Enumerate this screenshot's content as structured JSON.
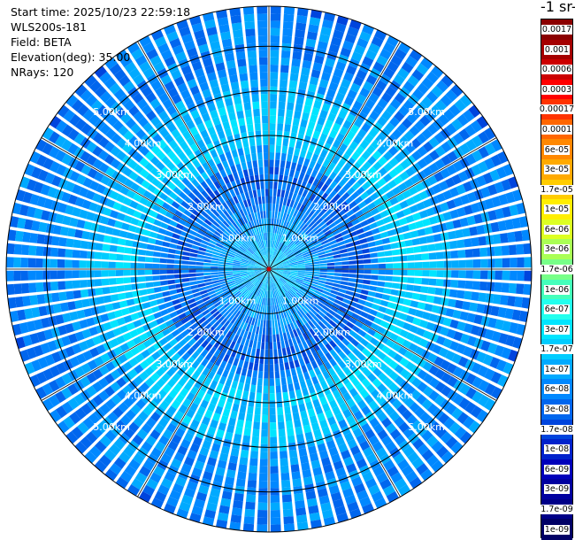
{
  "header": {
    "start_time": "Start time: 2025/10/23 22:59:18",
    "instrument": "WLS200s-181",
    "field": "Field: BETA",
    "elevation": "Elevation(deg): 35.00",
    "nrays": "NRays: 120"
  },
  "colorbar": {
    "unit_label": "-1 sr-",
    "labels": [
      "0.0017",
      "0.001",
      "0.0006",
      "0.0003",
      "0.00017",
      "0.0001",
      "6e-05",
      "3e-05",
      "1.7e-05",
      "1e-05",
      "6e-06",
      "3e-06",
      "1.7e-06",
      "1e-06",
      "6e-07",
      "3e-07",
      "1.7e-07",
      "1e-07",
      "6e-08",
      "3e-08",
      "1.7e-08",
      "1e-08",
      "6e-09",
      "3e-09",
      "1.7e-09",
      "1e-09"
    ],
    "colors": [
      "#8b0000",
      "#a50000",
      "#cc0000",
      "#ff0000",
      "#ff3300",
      "#ff6600",
      "#ff8800",
      "#ffaa00",
      "#ffcc00",
      "#ffee00",
      "#ddff22",
      "#aaff55",
      "#77ff88",
      "#44ffbb",
      "#22ffee",
      "#00e5ff",
      "#00ccff",
      "#00aaff",
      "#0088ff",
      "#0066ee",
      "#0044dd",
      "#0022cc",
      "#0000bb",
      "#0000a0",
      "#000088",
      "#000066"
    ]
  },
  "chart_data": {
    "type": "heatmap",
    "projection": "polar (PPI scan)",
    "field": "BETA",
    "elevation_deg": 35.0,
    "n_rays": 120,
    "range_rings_km": [
      1.0,
      2.0,
      3.0,
      4.0,
      5.0
    ],
    "ring_labels": [
      "1.00km",
      "2.00km",
      "3.00km",
      "4.00km",
      "5.00km"
    ],
    "max_range_km": 5.9,
    "spoke_angles_deg": [
      0,
      30,
      60,
      90,
      120,
      150,
      180,
      210,
      240,
      270,
      300,
      330
    ],
    "color_scale": "log",
    "value_range": [
      1e-09,
      0.0017
    ],
    "radial_profile": [
      {
        "range_km": 0.0,
        "value": 1.7e-07
      },
      {
        "range_km": 0.6,
        "value": 1.2e-07
      },
      {
        "range_km": 1.0,
        "value": 8e-08
      },
      {
        "range_km": 1.5,
        "value": 4e-08
      },
      {
        "range_km": 2.2,
        "value": 3e-08
      },
      {
        "range_km": 2.8,
        "value": 1.5e-07
      },
      {
        "range_km": 3.4,
        "value": 2e-07
      },
      {
        "range_km": 4.0,
        "value": 1e-07
      },
      {
        "range_km": 4.6,
        "value": 5e-08
      },
      {
        "range_km": 5.3,
        "value": 6e-08
      },
      {
        "range_km": 5.9,
        "value": 4e-08
      }
    ]
  }
}
